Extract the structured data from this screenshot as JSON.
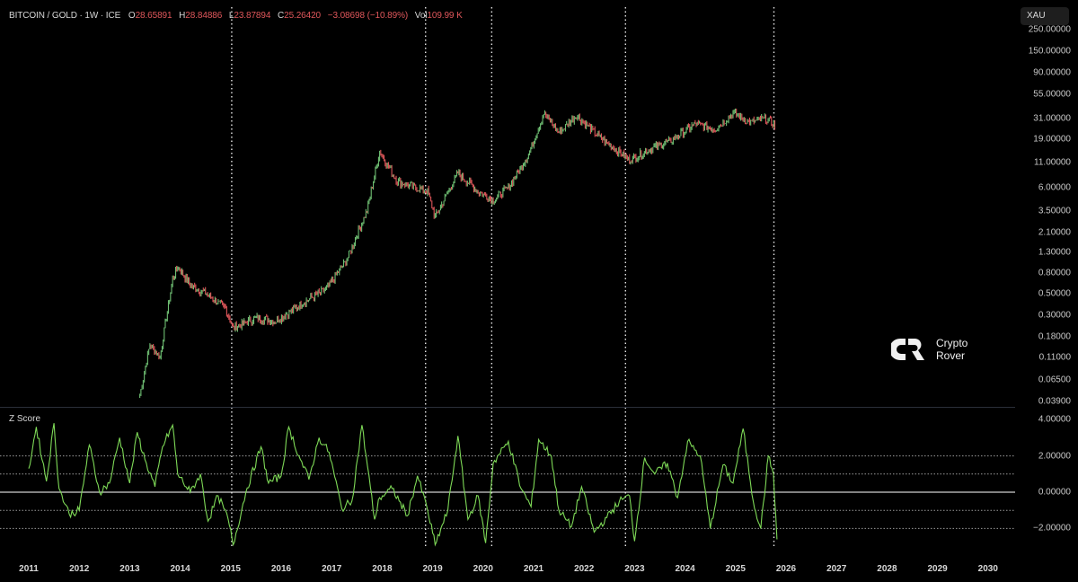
{
  "header": {
    "symbol": "BITCOIN / GOLD · 1W · ICE",
    "open_label": "O",
    "open": "28.65891",
    "high_label": "H",
    "high": "28.84886",
    "low_label": "L",
    "low": "23.87894",
    "close_label": "C",
    "close": "25.26420",
    "change": "−3.08698 (−10.89%)",
    "vol_label": "Vol",
    "vol": "109.99 K"
  },
  "currency_badge": "XAU",
  "watermark": {
    "line1": "Crypto",
    "line2": "Rover"
  },
  "colors": {
    "up": "#6fbf73",
    "down": "#e0575b",
    "zscore": "#7ed957",
    "background": "#000000",
    "grid": "#cfcfcf"
  },
  "price_axis": {
    "labels": [
      "250.00000",
      "150.00000",
      "90.00000",
      "55.00000",
      "31.00000",
      "19.00000",
      "11.00000",
      "6.00000",
      "3.50000",
      "2.10000",
      "1.30000",
      "0.80000",
      "0.50000",
      "0.30000",
      "0.18000",
      "0.11000",
      "0.06500",
      "0.03900"
    ]
  },
  "zscore_pane": {
    "title": "Z Score",
    "axis_labels": [
      "4.00000",
      "2.00000",
      "0.00000",
      "−2.00000"
    ]
  },
  "x_axis": {
    "labels": [
      "2011",
      "2012",
      "2013",
      "2014",
      "2015",
      "2016",
      "2017",
      "2018",
      "2019",
      "2020",
      "2021",
      "2022",
      "2023",
      "2024",
      "2025",
      "2026",
      "2027",
      "2028",
      "2029",
      "2030"
    ]
  },
  "chart_data": [
    {
      "type": "line",
      "title": "BITCOIN / GOLD · 1W · ICE",
      "ylabel": "XAU",
      "yscale": "log",
      "ylim": [
        0.039,
        250
      ],
      "x": [
        2013.2,
        2013.4,
        2013.6,
        2013.85,
        2013.95,
        2014.2,
        2014.5,
        2014.9,
        2015.05,
        2015.5,
        2015.9,
        2016.5,
        2016.9,
        2017.3,
        2017.7,
        2017.95,
        2018.3,
        2018.9,
        2019.05,
        2019.5,
        2019.9,
        2020.2,
        2020.5,
        2020.9,
        2021.2,
        2021.5,
        2021.85,
        2022.3,
        2022.9,
        2023.3,
        2023.7,
        2024.2,
        2024.6,
        2024.95,
        2025.3,
        2025.6,
        2025.8
      ],
      "values": [
        0.045,
        0.15,
        0.11,
        0.7,
        0.95,
        0.6,
        0.5,
        0.35,
        0.22,
        0.28,
        0.26,
        0.42,
        0.55,
        1.1,
        3.5,
        14.0,
        7.0,
        5.5,
        3.0,
        8.5,
        5.5,
        4.5,
        6.0,
        13.0,
        35.0,
        22.0,
        33.0,
        20.0,
        11.5,
        15.0,
        18.0,
        27.0,
        24.0,
        35.0,
        28.0,
        31.0,
        25.26
      ]
    },
    {
      "type": "line",
      "title": "Z Score",
      "ylim": [
        -3,
        4.5
      ],
      "reference_lines": [
        2,
        1,
        0,
        -1,
        -2
      ],
      "x": [
        2011.0,
        2011.15,
        2011.35,
        2011.5,
        2011.6,
        2011.8,
        2012.0,
        2012.2,
        2012.4,
        2012.6,
        2012.8,
        2013.0,
        2013.15,
        2013.3,
        2013.5,
        2013.65,
        2013.85,
        2013.95,
        2014.2,
        2014.4,
        2014.55,
        2014.75,
        2014.95,
        2015.05,
        2015.3,
        2015.6,
        2015.75,
        2016.0,
        2016.15,
        2016.35,
        2016.55,
        2016.75,
        2016.95,
        2017.2,
        2017.4,
        2017.6,
        2017.85,
        2017.95,
        2018.2,
        2018.5,
        2018.7,
        2018.9,
        2019.05,
        2019.3,
        2019.5,
        2019.7,
        2019.9,
        2020.05,
        2020.2,
        2020.5,
        2020.75,
        2020.95,
        2021.1,
        2021.35,
        2021.5,
        2021.75,
        2021.95,
        2022.2,
        2022.45,
        2022.7,
        2022.9,
        2023.0,
        2023.2,
        2023.4,
        2023.65,
        2023.85,
        2024.05,
        2024.3,
        2024.5,
        2024.75,
        2024.95,
        2025.15,
        2025.35,
        2025.5,
        2025.65,
        2025.75,
        2025.82
      ],
      "values": [
        1.3,
        3.6,
        0.6,
        3.8,
        0.2,
        -1.2,
        -1.0,
        2.6,
        0.0,
        0.5,
        3.0,
        0.5,
        3.3,
        1.8,
        0.3,
        2.5,
        3.7,
        1.0,
        0.0,
        1.0,
        -1.6,
        -0.2,
        -1.5,
        -2.9,
        0.0,
        2.5,
        0.5,
        0.9,
        3.6,
        2.0,
        0.7,
        3.0,
        2.2,
        -0.9,
        -0.5,
        3.7,
        -1.5,
        -0.3,
        0.2,
        -1.3,
        0.9,
        -1.0,
        -2.9,
        -1.0,
        3.1,
        -1.5,
        -0.2,
        -2.8,
        1.6,
        2.8,
        0.2,
        -0.8,
        2.9,
        2.0,
        -1.0,
        -1.9,
        0.3,
        -2.2,
        -1.4,
        -0.5,
        -0.2,
        -2.7,
        1.9,
        1.0,
        1.6,
        -0.3,
        2.8,
        2.0,
        -2.0,
        1.5,
        0.5,
        3.5,
        -0.5,
        -2.0,
        2.0,
        1.0,
        -2.6
      ]
    }
  ],
  "cycle_markers": {
    "x": [
      2015.02,
      2018.86,
      2020.17,
      2022.82,
      2025.76
    ]
  }
}
